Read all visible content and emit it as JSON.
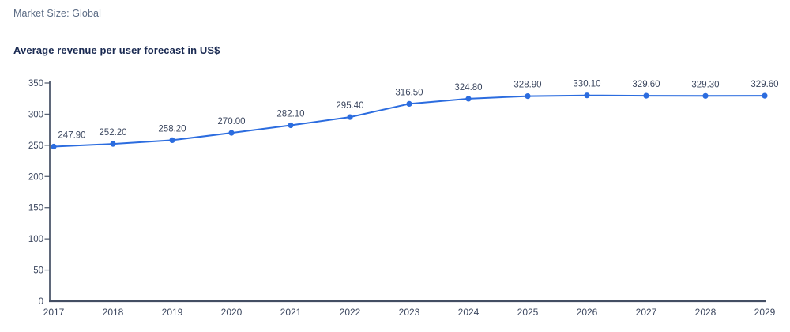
{
  "header": {
    "market_size": "Market Size: Global"
  },
  "chart_data": {
    "type": "line",
    "title": "Average revenue per user forecast in US$",
    "categories": [
      "2017",
      "2018",
      "2019",
      "2020",
      "2021",
      "2022",
      "2023",
      "2024",
      "2025",
      "2026",
      "2027",
      "2028",
      "2029"
    ],
    "values": [
      247.9,
      252.2,
      258.2,
      270.0,
      282.1,
      295.4,
      316.5,
      324.8,
      328.9,
      330.1,
      329.6,
      329.3,
      329.6
    ],
    "value_labels": [
      "247.90",
      "252.20",
      "258.20",
      "270.00",
      "282.10",
      "295.40",
      "316.50",
      "324.80",
      "328.90",
      "330.10",
      "329.60",
      "329.30",
      "329.60"
    ],
    "xlabel": "",
    "ylabel": "",
    "ylim": [
      0,
      350
    ],
    "ytick_step": 50,
    "ytick_labels": [
      "0",
      "50",
      "100",
      "150",
      "200",
      "250",
      "300",
      "350"
    ],
    "grid": false,
    "legend": false,
    "data_labels": true,
    "colors": {
      "line": "#2b6cdf",
      "marker": "#2b6cdf",
      "axis": "#434e63",
      "tick": "#5a6476",
      "axis_label": "#3d4860",
      "data_label": "#3d4860",
      "title": "#1a2a52",
      "header": "#5b6b84"
    }
  }
}
